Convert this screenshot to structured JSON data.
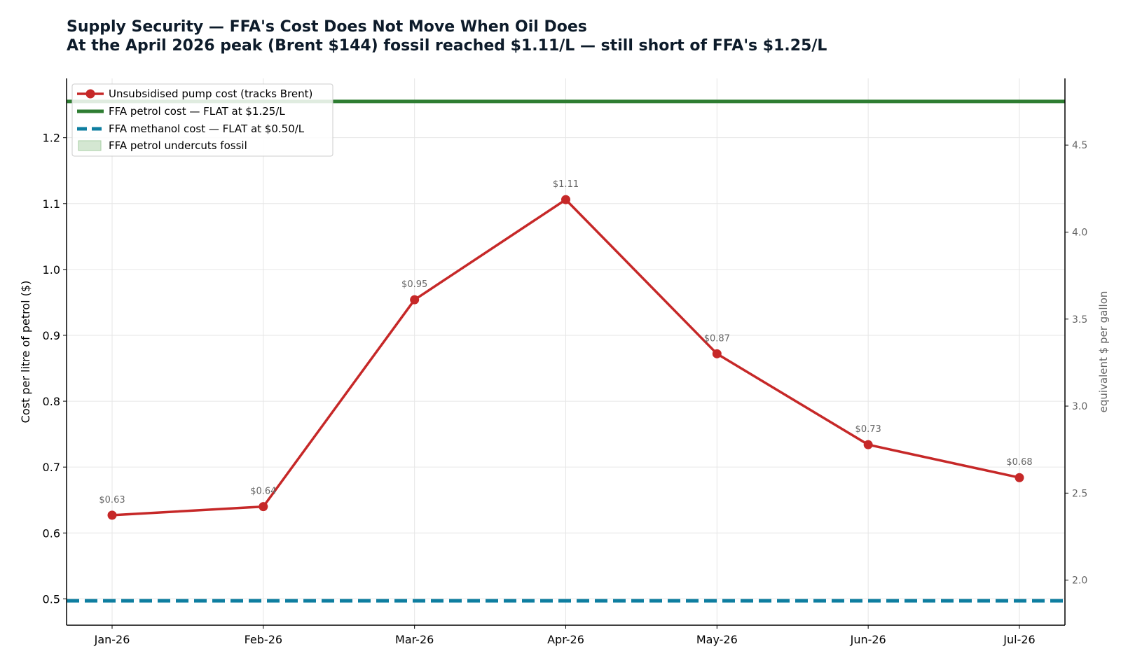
{
  "title_line1": "Supply Security — FFA's Cost Does Not Move When Oil Does",
  "title_line2": "At the April 2026 peak (Brent $144) fossil reached $1.11/L — still short of FFA's $1.25/L",
  "chart_data": {
    "type": "line",
    "title": "Supply Security — FFA's Cost Does Not Move When Oil Does",
    "subtitle": "At the April 2026 peak (Brent $144) fossil reached $1.11/L — still short of FFA's $1.25/L",
    "categories": [
      "Jan-26",
      "Feb-26",
      "Mar-26",
      "Apr-26",
      "May-26",
      "Jun-26",
      "Jul-26"
    ],
    "ylabel": "Cost per litre of petrol ($)",
    "y2label": "equivalent $ per gallon",
    "ylim": [
      0.46,
      1.29
    ],
    "yticks": [
      0.5,
      0.6,
      0.7,
      0.8,
      0.9,
      1.0,
      1.1,
      1.2
    ],
    "ytick_labels": [
      "0.5",
      "0.6",
      "0.7",
      "0.8",
      "0.9",
      "1.0",
      "1.1",
      "1.2"
    ],
    "y2lim": [
      1.741,
      4.883
    ],
    "y2ticks": [
      2.0,
      2.5,
      3.0,
      3.5,
      4.0,
      4.5
    ],
    "y2tick_labels": [
      "2.0",
      "2.5",
      "3.0",
      "3.5",
      "4.0",
      "4.5"
    ],
    "grid": true,
    "legend_position": "top-left",
    "series": [
      {
        "name": "Unsubsidised pump cost (tracks Brent)",
        "kind": "line-markers",
        "color": "#c62828",
        "values": [
          0.627,
          0.64,
          0.954,
          1.106,
          0.872,
          0.734,
          0.684
        ],
        "labels": [
          "$0.63",
          "$0.64",
          "$0.95",
          "$1.11",
          "$0.87",
          "$0.73",
          "$0.68"
        ]
      },
      {
        "name": "FFA petrol cost — FLAT at $1.25/L",
        "kind": "hline",
        "color": "#2e7d32",
        "value": 1.255
      },
      {
        "name": "FFA methanol cost — FLAT at $0.50/L",
        "kind": "hline-dashed",
        "color": "#0e7ea0",
        "value": 0.497
      },
      {
        "name": "FFA petrol undercuts fossil",
        "kind": "fill",
        "color": "#d4e7d2"
      }
    ]
  }
}
